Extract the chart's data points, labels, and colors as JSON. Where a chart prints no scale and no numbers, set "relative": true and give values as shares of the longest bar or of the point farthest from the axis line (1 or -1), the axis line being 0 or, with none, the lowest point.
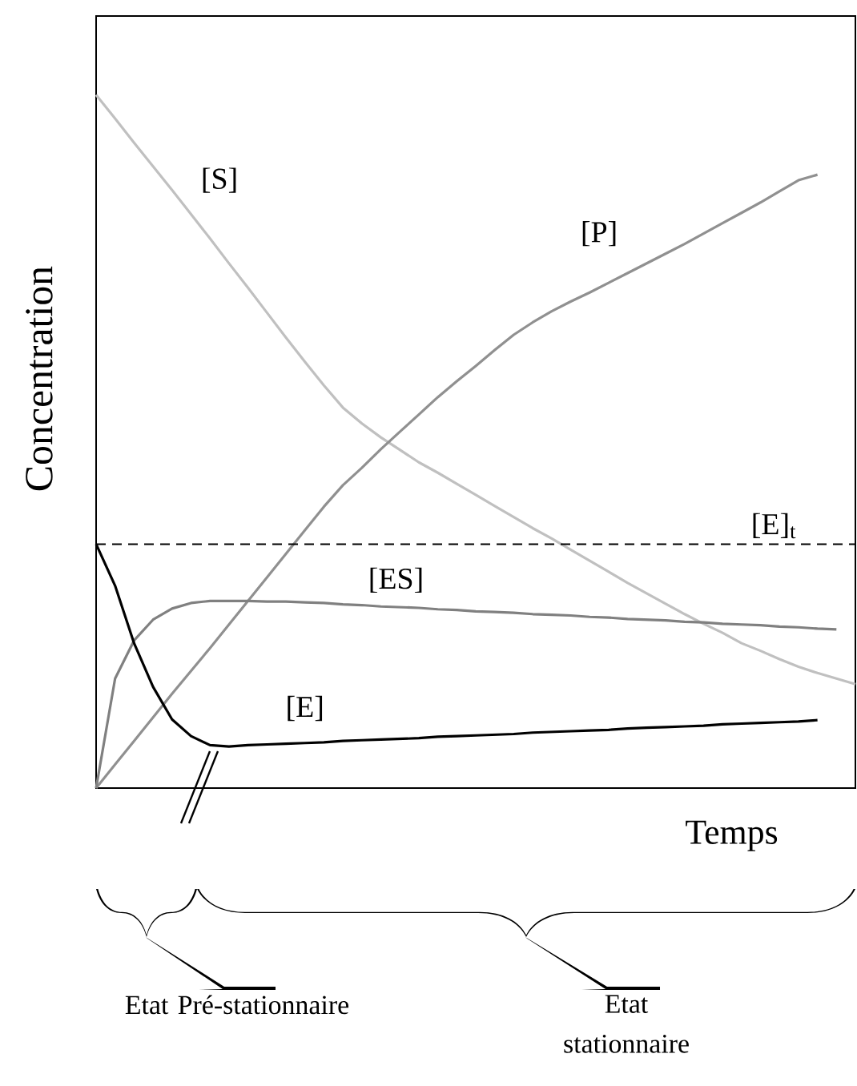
{
  "chart_data": {
    "type": "line",
    "relative": true,
    "xlabel": "Temps",
    "ylabel": "Concentration",
    "tick_labels": false,
    "marker": "none",
    "categories": [
      null,
      null,
      null,
      null,
      null,
      null,
      null,
      null,
      null,
      null,
      null,
      null,
      null,
      null,
      null,
      null,
      null,
      null,
      null,
      null,
      null,
      null,
      null,
      null,
      null,
      null,
      null,
      null,
      null,
      null,
      null,
      null,
      null,
      null,
      null,
      null,
      null,
      null,
      null,
      null,
      null
    ],
    "series": [
      {
        "name": "[S]",
        "color": "#c0c0c0",
        "values": [
          1.0,
          0.966,
          0.931,
          0.897,
          0.863,
          0.828,
          0.793,
          0.757,
          0.722,
          0.686,
          0.65,
          0.615,
          0.581,
          0.549,
          0.526,
          0.506,
          0.488,
          0.47,
          0.455,
          0.439,
          0.423,
          0.407,
          0.391,
          0.375,
          0.36,
          0.344,
          0.328,
          0.312,
          0.296,
          0.281,
          0.266,
          0.251,
          0.237,
          0.224,
          0.209,
          0.198,
          0.186,
          0.175,
          0.166,
          0.158,
          0.15
        ]
      },
      {
        "name": "[P]",
        "color": "#909090",
        "values": [
          0,
          0.034,
          0.068,
          0.102,
          0.136,
          0.169,
          0.202,
          0.236,
          0.27,
          0.304,
          0.338,
          0.372,
          0.406,
          0.437,
          0.462,
          0.489,
          0.514,
          0.539,
          0.564,
          0.587,
          0.609,
          0.632,
          0.654,
          0.672,
          0.688,
          0.702,
          0.715,
          0.729,
          0.743,
          0.757,
          0.771,
          0.785,
          0.8,
          0.815,
          0.83,
          0.845,
          0.861,
          0.877,
          0.885,
          null,
          null
        ]
      },
      {
        "name": "[ES]",
        "color": "#808080",
        "values": [
          0,
          0.158,
          0.213,
          0.243,
          0.259,
          0.267,
          0.27,
          0.27,
          0.27,
          0.269,
          0.269,
          0.268,
          0.267,
          0.265,
          0.264,
          0.262,
          0.261,
          0.26,
          0.258,
          0.257,
          0.255,
          0.254,
          0.253,
          0.251,
          0.25,
          0.249,
          0.247,
          0.246,
          0.244,
          0.243,
          0.242,
          0.24,
          0.239,
          0.237,
          0.236,
          0.235,
          0.233,
          0.232,
          0.23,
          0.229,
          null
        ]
      },
      {
        "name": "[E]",
        "color": "#000000",
        "values": [
          0.352,
          0.292,
          0.209,
          0.146,
          0.099,
          0.075,
          0.062,
          0.06,
          0.062,
          0.063,
          0.064,
          0.065,
          0.066,
          0.068,
          0.069,
          0.07,
          0.071,
          0.072,
          0.074,
          0.075,
          0.076,
          0.077,
          0.078,
          0.08,
          0.081,
          0.082,
          0.083,
          0.084,
          0.086,
          0.087,
          0.088,
          0.089,
          0.09,
          0.092,
          0.093,
          0.094,
          0.095,
          0.096,
          0.098,
          null,
          null
        ]
      }
    ],
    "ref_lines": [
      {
        "axis": "y",
        "value": 0.352,
        "label": "[E]$_{t}$",
        "color": "#000000",
        "line_style": "dashed"
      }
    ],
    "annotations": [
      "Etat Pré-stationnaire",
      "Etat stationnaire"
    ]
  }
}
